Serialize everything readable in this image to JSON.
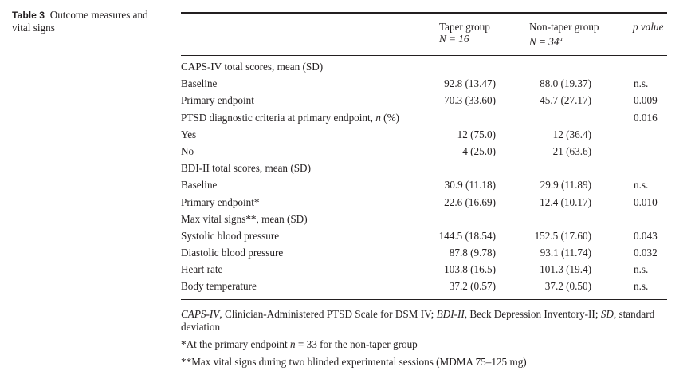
{
  "caption": {
    "label": "Table 3",
    "text": "Outcome measures and vital signs"
  },
  "header": {
    "taper_line1": "Taper group",
    "taper_line2": "N = 16",
    "non_line1": "Non-taper group",
    "non_line2": "N = 34",
    "non_sup": "a",
    "p_value": "p value"
  },
  "rows": [
    {
      "label": "CAPS-IV total scores, mean (SD)",
      "taper": "",
      "non": "",
      "p": ""
    },
    {
      "label": "Baseline",
      "taper": "92.8 (13.47)",
      "non": "88.0 (19.37)",
      "p": "n.s."
    },
    {
      "label": "Primary endpoint",
      "taper": "70.3 (33.60)",
      "non": "45.7 (27.17)",
      "p": "0.009"
    },
    {
      "label": "PTSD diagnostic criteria at primary endpoint, ",
      "label_italic": "n",
      "label_tail": " (%)",
      "taper": "",
      "non": "",
      "p": "0.016"
    },
    {
      "label": "Yes",
      "taper": "12 (75.0)",
      "non": "12 (36.4)",
      "p": ""
    },
    {
      "label": "No",
      "taper": "4 (25.0)",
      "non": "21 (63.6)",
      "p": ""
    },
    {
      "label": "BDI-II total scores, mean (SD)",
      "taper": "",
      "non": "",
      "p": ""
    },
    {
      "label": "Baseline",
      "taper": "30.9 (11.18)",
      "non": "29.9 (11.89)",
      "p": "n.s."
    },
    {
      "label": "Primary endpoint*",
      "taper": "22.6 (16.69)",
      "non": "12.4 (10.17)",
      "p": "0.010"
    },
    {
      "label": "Max vital signs**, mean (SD)",
      "taper": "",
      "non": "",
      "p": ""
    },
    {
      "label": "Systolic blood pressure",
      "taper": "144.5 (18.54)",
      "non": "152.5 (17.60)",
      "p": "0.043"
    },
    {
      "label": "Diastolic blood pressure",
      "taper": "87.8 (9.78)",
      "non": "93.1 (11.74)",
      "p": "0.032"
    },
    {
      "label": "Heart rate",
      "taper": "103.8 (16.5)",
      "non": "101.3 (19.4)",
      "p": "n.s."
    },
    {
      "label": "Body temperature",
      "taper": "37.2 (0.57)",
      "non": "37.2 (0.50)",
      "p": "n.s."
    }
  ],
  "footnotes": {
    "abbrev": {
      "a1": "CAPS-IV",
      "t1": ", Clinician-Administered PTSD Scale for DSM IV; ",
      "a2": "BDI-II",
      "t2": ", Beck Depression Inventory-II; ",
      "a3": "SD",
      "t3": ", standard deviation"
    },
    "note1_pre": "*At the primary endpoint ",
    "note1_n": "n",
    "note1_post": " = 33 for the non-taper group",
    "note2": "**Max vital signs during two blinded experimental sessions (MDMA 75–125 mg)"
  }
}
